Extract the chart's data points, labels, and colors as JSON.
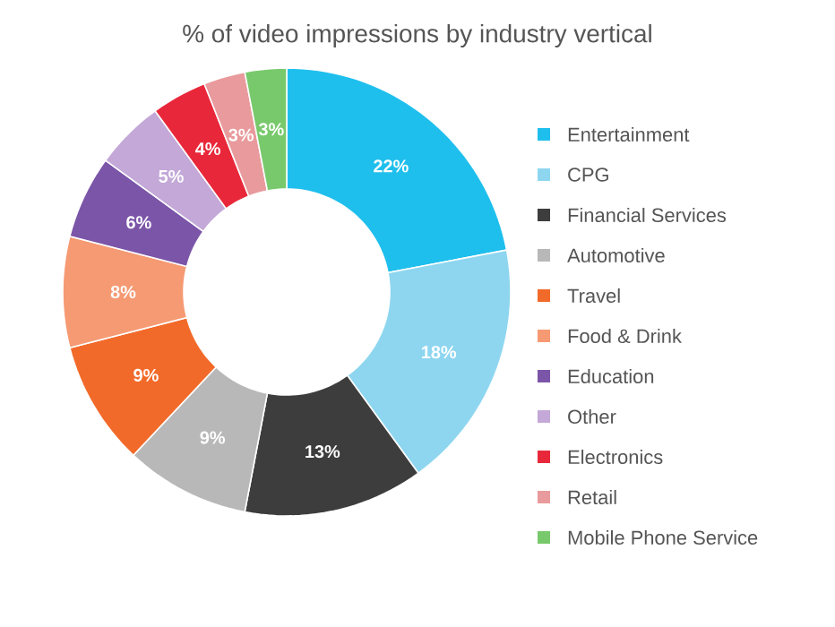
{
  "chart_data": {
    "type": "donut",
    "title": "% of video impressions by industry vertical",
    "categories": [
      "Entertainment",
      "CPG",
      "Financial Services",
      "Automotive",
      "Travel",
      "Food & Drink",
      "Education",
      "Other",
      "Electronics",
      "Retail",
      "Mobile Phone Service"
    ],
    "values": [
      22,
      18,
      13,
      9,
      9,
      8,
      6,
      5,
      4,
      3,
      3
    ],
    "value_labels": [
      "22%",
      "18%",
      "13%",
      "9%",
      "9%",
      "8%",
      "6%",
      "5%",
      "4%",
      "3%",
      "3%"
    ],
    "colors": [
      "#1fbfed",
      "#8ed6f0",
      "#3d3d3d",
      "#b8b8b8",
      "#f26a2a",
      "#f59a73",
      "#7b55a8",
      "#c3a8d8",
      "#e8283a",
      "#e89a9c",
      "#78c96c"
    ],
    "legend": "right"
  }
}
